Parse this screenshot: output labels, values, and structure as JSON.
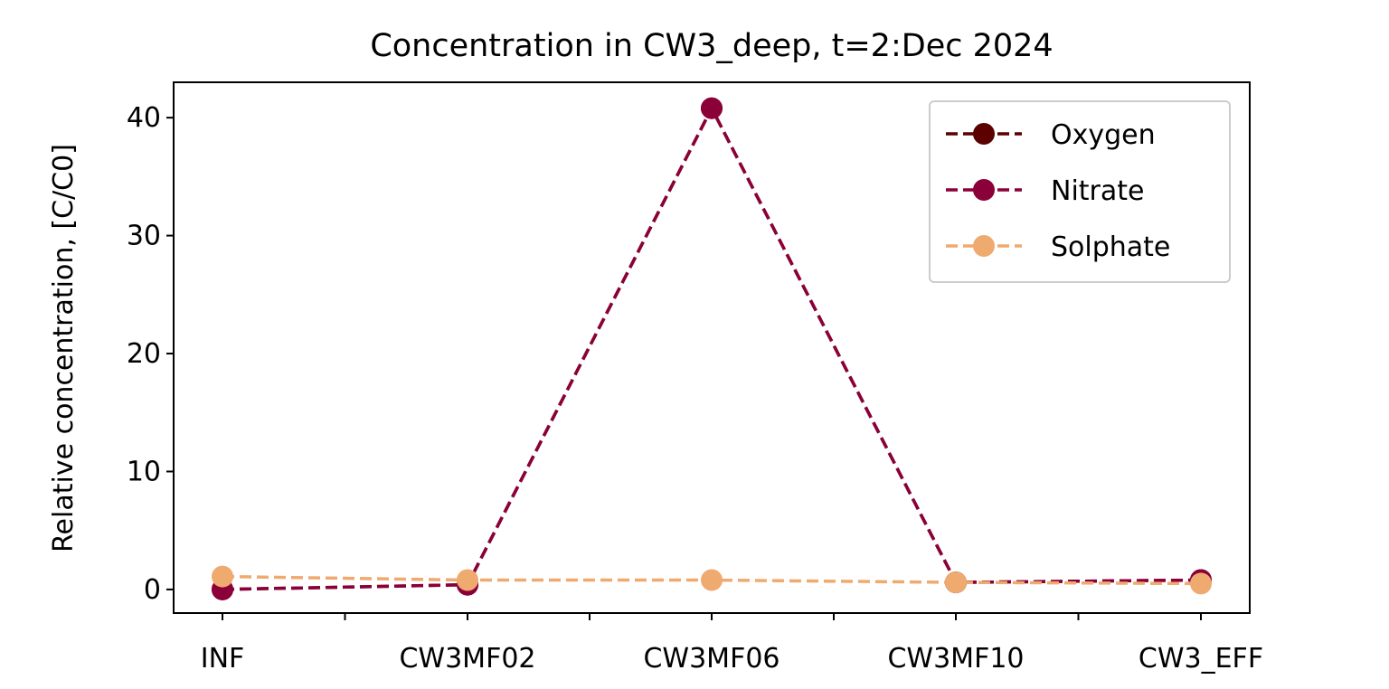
{
  "chart_data": {
    "type": "line",
    "title": "Concentration in CW3_deep, t=2:Dec 2024",
    "xlabel": "",
    "ylabel": "Relative concentration, [C/C0]",
    "categories": [
      "INF",
      "CW3MF02",
      "CW3MF06",
      "CW3MF10",
      "CW3_EFF"
    ],
    "ylim": [
      -2,
      43
    ],
    "yticks": [
      0,
      10,
      20,
      30,
      40
    ],
    "grid": false,
    "legend_position": "top-right",
    "series": [
      {
        "name": "Oxygen",
        "values": [
          0.0,
          0.4,
          40.8,
          0.6,
          0.8
        ],
        "color": "#5c0000",
        "linestyle": "dashed",
        "marker": "circle"
      },
      {
        "name": "Nitrate",
        "values": [
          0.0,
          0.4,
          40.8,
          0.6,
          0.8
        ],
        "color": "#8b0039",
        "linestyle": "dashed",
        "marker": "circle"
      },
      {
        "name": "Solphate",
        "values": [
          1.1,
          0.8,
          0.8,
          0.6,
          0.5
        ],
        "color": "#efaa70",
        "linestyle": "dashed",
        "marker": "circle"
      }
    ]
  }
}
